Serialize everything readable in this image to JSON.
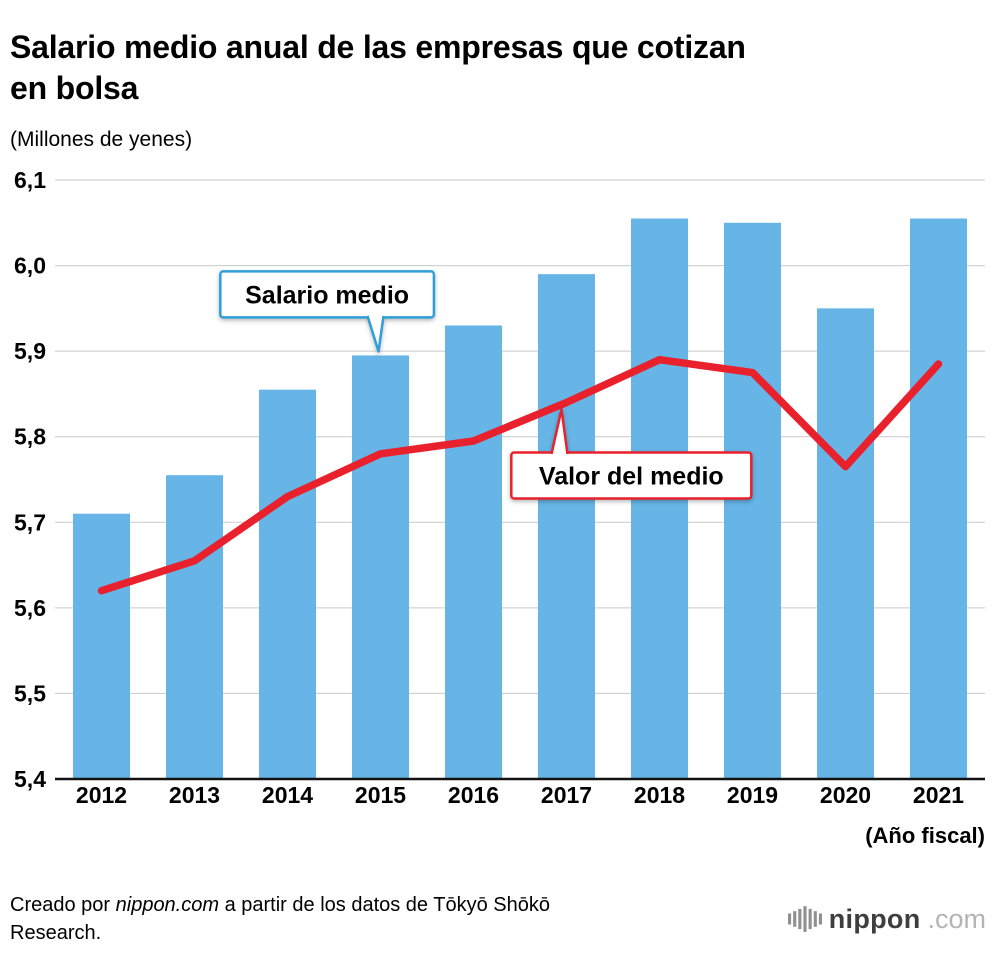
{
  "page": {
    "title": "Salario medio anual de las empresas que cotizan\nen bolsa",
    "units_label": "(Millones de yenes)",
    "x_axis_note": "(Año fiscal)",
    "footer": {
      "prefix": "Creado por ",
      "brand": "nippon.com",
      "suffix": " a partir de los datos de Tōkyō Shōkō\nResearch."
    },
    "logo": {
      "name": "nippon",
      "tld": ".com"
    }
  },
  "chart_data": {
    "type": "bar",
    "title": "Salario medio anual de las empresas que cotizan en bolsa",
    "xlabel": "(Año fiscal)",
    "ylabel": "(Millones de yenes)",
    "categories": [
      "2012",
      "2013",
      "2014",
      "2015",
      "2016",
      "2017",
      "2018",
      "2019",
      "2020",
      "2021"
    ],
    "series": [
      {
        "name": "Salario medio",
        "type": "bar",
        "color": "#66b5e6",
        "values": [
          5.71,
          5.755,
          5.855,
          5.895,
          5.93,
          5.99,
          6.055,
          6.05,
          5.95,
          6.055
        ]
      },
      {
        "name": "Valor del medio",
        "type": "line",
        "color": "#e8212d",
        "values": [
          5.62,
          5.655,
          5.73,
          5.78,
          5.795,
          5.84,
          5.89,
          5.875,
          5.765,
          5.885
        ]
      }
    ],
    "ylim": [
      5.4,
      6.1
    ],
    "y_ticks": [
      {
        "value": 5.4,
        "label": "5,4"
      },
      {
        "value": 5.5,
        "label": "5,5"
      },
      {
        "value": 5.6,
        "label": "5,6"
      },
      {
        "value": 5.7,
        "label": "5,7"
      },
      {
        "value": 5.8,
        "label": "5,8"
      },
      {
        "value": 5.9,
        "label": "5,9"
      },
      {
        "value": 6.0,
        "label": "6,0"
      },
      {
        "value": 6.1,
        "label": "6,1"
      }
    ],
    "grid": true,
    "legend_position": "none",
    "annotations": [
      {
        "label": "Salario medio",
        "color": "#2f9ed9",
        "series": 0,
        "index": 3,
        "placement": "above"
      },
      {
        "label": "Valor del medio",
        "color": "#e8212d",
        "series": 1,
        "index": 5,
        "placement": "below"
      }
    ]
  }
}
